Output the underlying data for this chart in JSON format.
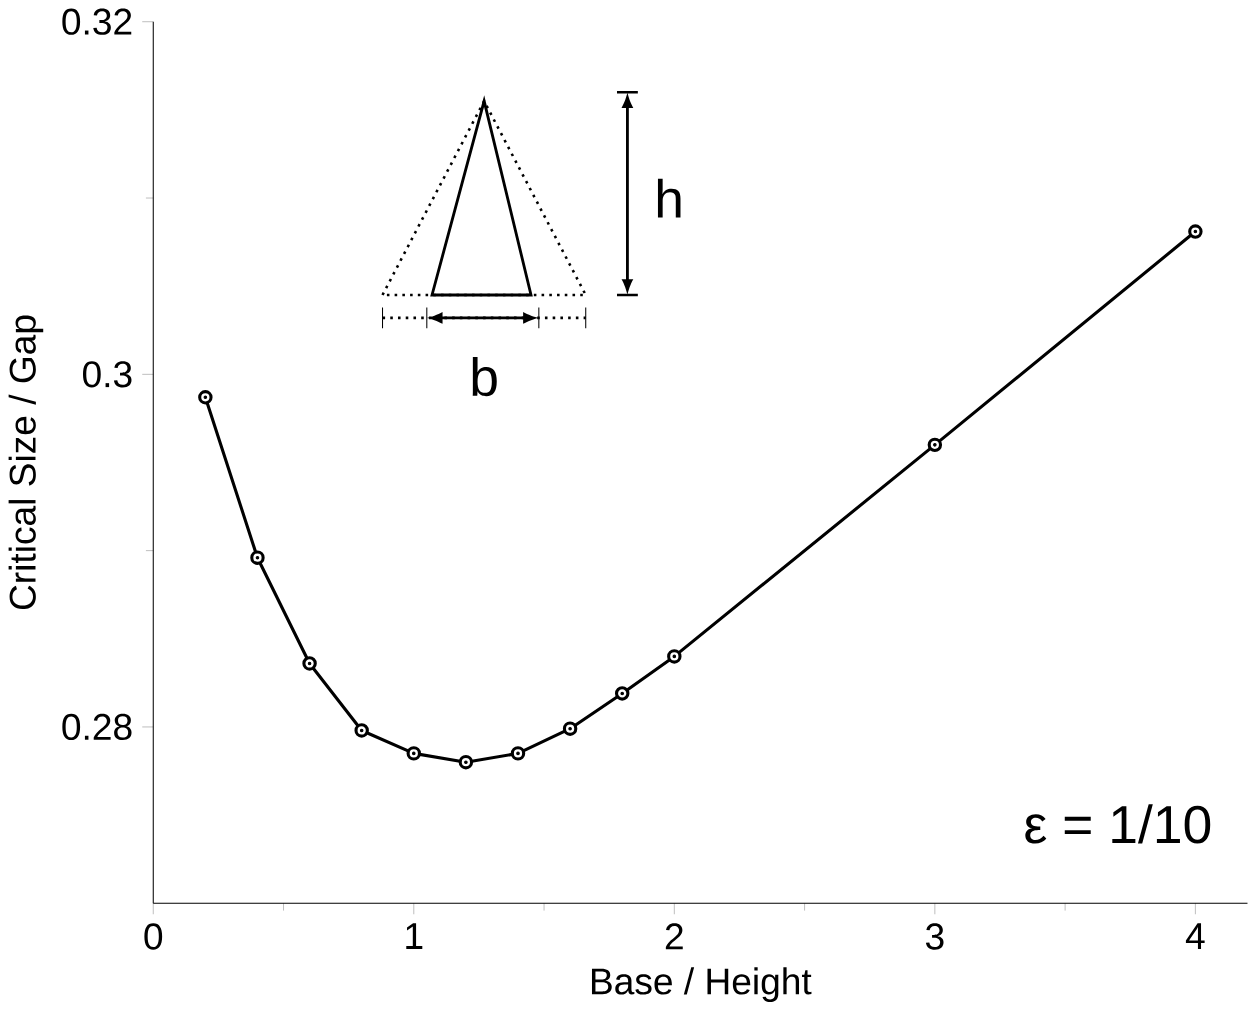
{
  "chart_data": {
    "type": "line",
    "xlabel": "Base / Height",
    "ylabel": "Critical Size / Gap",
    "x": [
      0.2,
      0.4,
      0.6,
      0.8,
      1.0,
      1.2,
      1.4,
      1.6,
      1.8,
      2.0,
      3.0,
      4.0
    ],
    "series": [
      {
        "color": "#000000",
        "values": [
          0.2987,
          0.2896,
          0.2836,
          0.2798,
          0.2785,
          0.278,
          0.2785,
          0.2799,
          0.2819,
          0.284,
          0.296,
          0.3081
        ]
      }
    ],
    "xlim": [
      0,
      4.2
    ],
    "ylim": [
      0.27,
      0.32
    ],
    "xticks": [
      0,
      1,
      2,
      3,
      4
    ],
    "yticks": [
      0.28,
      0.3,
      0.32
    ],
    "marker": "circle",
    "line_style": "solid",
    "grid": false,
    "annotations": [
      "h",
      "b",
      "ε = 1/10"
    ]
  }
}
